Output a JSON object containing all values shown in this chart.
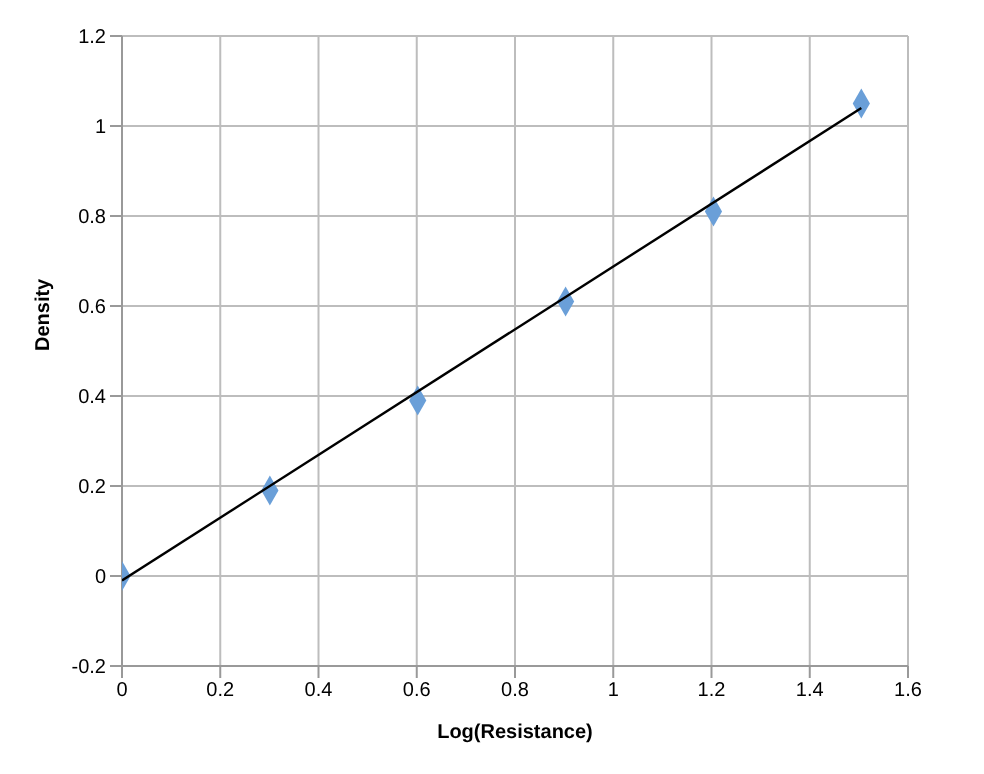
{
  "chart_data": {
    "type": "scatter",
    "xlabel": "Log(Resistance)",
    "ylabel": "Density",
    "xlim": [
      0,
      1.6
    ],
    "xticks": [
      0,
      0.2,
      0.4,
      0.6,
      0.8,
      1,
      1.2,
      1.4,
      1.6
    ],
    "ylim": [
      -0.2,
      1.2
    ],
    "yticks": [
      -0.2,
      0,
      0.2,
      0.4,
      0.6,
      0.8,
      1,
      1.2
    ],
    "grid": true,
    "legend": false,
    "marker": "diamond",
    "series": [
      {
        "color": "#6a9fd8",
        "x": [
          0,
          0.301,
          0.602,
          0.903,
          1.204,
          1.505
        ],
        "values": [
          0,
          0.19,
          0.39,
          0.61,
          0.81,
          1.05
        ]
      },
      {
        "type": "line",
        "color": "#000000",
        "marker": "none",
        "line_style": "solid",
        "x": [
          0,
          1.505
        ],
        "values": [
          -0.01,
          1.04
        ]
      }
    ]
  }
}
